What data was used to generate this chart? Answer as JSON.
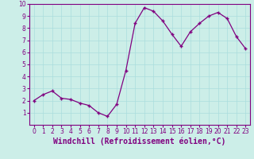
{
  "x": [
    0,
    1,
    2,
    3,
    4,
    5,
    6,
    7,
    8,
    9,
    10,
    11,
    12,
    13,
    14,
    15,
    16,
    17,
    18,
    19,
    20,
    21,
    22,
    23
  ],
  "y": [
    2.0,
    2.5,
    2.8,
    2.2,
    2.1,
    1.8,
    1.6,
    1.0,
    0.7,
    1.7,
    4.5,
    8.4,
    9.7,
    9.4,
    8.6,
    7.5,
    6.5,
    7.7,
    8.4,
    9.0,
    9.3,
    8.8,
    7.3,
    6.3
  ],
  "line_color": "#800080",
  "marker_color": "#800080",
  "bg_color": "#cceee8",
  "grid_color": "#aadddd",
  "axis_color": "#800080",
  "xlabel": "Windchill (Refroidissement éolien,°C)",
  "ylim": [
    0,
    10
  ],
  "xlim": [
    -0.5,
    23.5
  ],
  "yticks": [
    1,
    2,
    3,
    4,
    5,
    6,
    7,
    8,
    9,
    10
  ],
  "xticks": [
    0,
    1,
    2,
    3,
    4,
    5,
    6,
    7,
    8,
    9,
    10,
    11,
    12,
    13,
    14,
    15,
    16,
    17,
    18,
    19,
    20,
    21,
    22,
    23
  ],
  "tick_fontsize": 5.5,
  "label_fontsize": 7.0
}
